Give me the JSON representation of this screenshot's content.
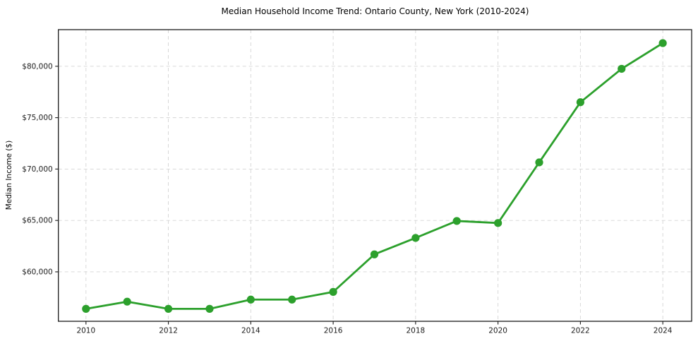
{
  "chart_data": {
    "type": "line",
    "title": "Median Household Income Trend: Ontario County, New York (2010-2024)",
    "xlabel": "",
    "ylabel": "Median Income ($)",
    "series_name": "Median Household Income",
    "x": [
      2010,
      2011,
      2012,
      2013,
      2014,
      2015,
      2016,
      2017,
      2018,
      2019,
      2020,
      2021,
      2022,
      2023,
      2024
    ],
    "values": [
      56400,
      57100,
      56400,
      56400,
      57300,
      57300,
      58050,
      61700,
      63300,
      64950,
      64750,
      70650,
      76500,
      79750,
      82250
    ],
    "xlim": [
      2009.33,
      2024.7
    ],
    "ylim": [
      55190,
      83560
    ],
    "x_ticks": [
      {
        "value": 2010,
        "label": "2010"
      },
      {
        "value": 2012,
        "label": "2012"
      },
      {
        "value": 2014,
        "label": "2014"
      },
      {
        "value": 2016,
        "label": "2016"
      },
      {
        "value": 2018,
        "label": "2018"
      },
      {
        "value": 2020,
        "label": "2020"
      },
      {
        "value": 2022,
        "label": "2022"
      },
      {
        "value": 2024,
        "label": "2024"
      }
    ],
    "y_ticks": [
      {
        "value": 60000,
        "label": "$60,000"
      },
      {
        "value": 65000,
        "label": "$65,000"
      },
      {
        "value": 70000,
        "label": "$70,000"
      },
      {
        "value": 75000,
        "label": "$75,000"
      },
      {
        "value": 80000,
        "label": "$80,000"
      }
    ],
    "grid": true,
    "legend_position": "none",
    "colors": {
      "line": "#2ca02c",
      "marker": "#2ca02c",
      "grid": "#d4d4d4",
      "axis_frame": "#1a1a1a",
      "tick_text": "#1c1c1c",
      "background": "#ffffff"
    }
  }
}
